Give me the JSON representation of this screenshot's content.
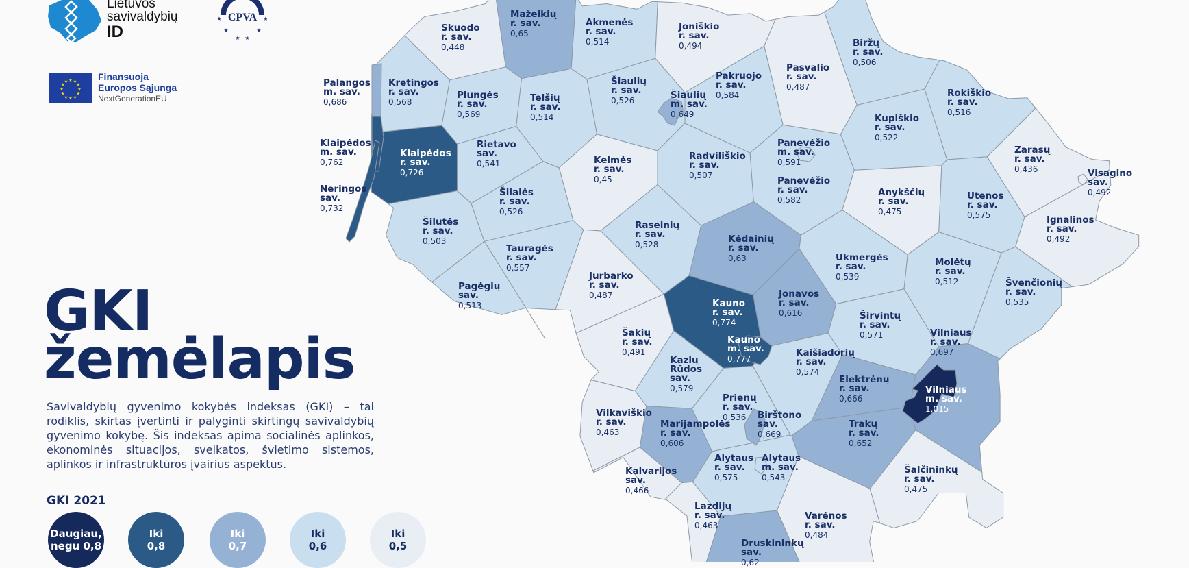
{
  "logos": {
    "id_logo": {
      "line1": "Lietuvos",
      "line2": "savivaldybių",
      "line3": "ID"
    },
    "cpva_logo": {
      "text": "CPVA"
    },
    "eu_logo": {
      "line1": "Finansuoja",
      "line2": "Europos Sąjunga",
      "line3": "NextGenerationEU"
    }
  },
  "title": {
    "line1": "GKI",
    "line2": "žemėlapis"
  },
  "description": "Savivaldybių gyvenimo kokybės indeksas (GKI) – tai rodiklis, skirtas įvertinti ir palyginti skirtingų savivaldybių gyvenimo kokybę. Šis indeksas apima socialinės aplinkos, ekonominės situacijos, sveikatos, švietimo sistemos, aplinkos ir infrastruk­tūros įvairius aspektus.",
  "legend": {
    "title": "GKI 2021",
    "items": [
      {
        "line1": "Daugiau,",
        "line2": "negu 0,8",
        "lower_bound": 0.8,
        "color": "#15295a",
        "text_color": "#ffffff"
      },
      {
        "line1": "Iki",
        "line2": "0,8",
        "lower_bound": 0.7,
        "color": "#2b5a87",
        "text_color": "#ffffff"
      },
      {
        "line1": "Iki",
        "line2": "0,7",
        "lower_bound": 0.6,
        "color": "#95b2d5",
        "text_color": "#ffffff"
      },
      {
        "line1": "Iki",
        "line2": "0,6",
        "lower_bound": 0.5,
        "color": "#c9deee",
        "text_color": "#152c62"
      },
      {
        "line1": "Iki",
        "line2": "0,5",
        "lower_bound": 0,
        "color": "#e8eef4",
        "text_color": "#152c62"
      }
    ]
  },
  "map": {
    "border_color": "#8e99a6",
    "municipalities": [
      {
        "name": "Palangos",
        "type": "m. sav.",
        "value": "0,686"
      },
      {
        "name": "Klaipėdos",
        "type": "m. sav.",
        "value": "0,762"
      },
      {
        "name": "Neringos",
        "type": "sav.",
        "value": "0,732"
      },
      {
        "name": "Skuodo",
        "type": "r. sav.",
        "value": "0,448"
      },
      {
        "name": "Mažeikių",
        "type": "r. sav.",
        "value": "0,65"
      },
      {
        "name": "Akmenės",
        "type": "r. sav.",
        "value": "0,514"
      },
      {
        "name": "Joniškio",
        "type": "r. sav.",
        "value": "0,494"
      },
      {
        "name": "Biržų",
        "type": "r. sav.",
        "value": "0,506"
      },
      {
        "name": "Pasvalio",
        "type": "r. sav.",
        "value": "0,487"
      },
      {
        "name": "Pakruojo",
        "type": "r. sav.",
        "value": "0,584"
      },
      {
        "name": "Šiaulių",
        "type": "r. sav.",
        "value": "0,526"
      },
      {
        "name": "Šiaulių",
        "type": "m. sav.",
        "value": "0,649"
      },
      {
        "name": "Kretingos",
        "type": "r. sav.",
        "value": "0,568"
      },
      {
        "name": "Plungės",
        "type": "r. sav.",
        "value": "0,569"
      },
      {
        "name": "Telšių",
        "type": "r. sav.",
        "value": "0,514"
      },
      {
        "name": "Rokiškio",
        "type": "r. sav.",
        "value": "0,516"
      },
      {
        "name": "Kupiškio",
        "type": "r. sav.",
        "value": "0,522"
      },
      {
        "name": "Klaipėdos",
        "type": "r. sav.",
        "value": "0,726"
      },
      {
        "name": "Rietavo",
        "type": "sav.",
        "value": "0,541"
      },
      {
        "name": "Kelmės",
        "type": "r. sav.",
        "value": "0,45"
      },
      {
        "name": "Radviliškio",
        "type": "r. sav.",
        "value": "0,507"
      },
      {
        "name": "Panevėžio",
        "type": "m. sav.",
        "value": "0,591"
      },
      {
        "name": "Panevėžio",
        "type": "r. sav.",
        "value": "0,582"
      },
      {
        "name": "Zarasų",
        "type": "r. sav.",
        "value": "0,436"
      },
      {
        "name": "Visagino",
        "type": "sav.",
        "value": "0,492"
      },
      {
        "name": "Anykščių",
        "type": "r. sav.",
        "value": "0,475"
      },
      {
        "name": "Utenos",
        "type": "r. sav.",
        "value": "0,575"
      },
      {
        "name": "Ignalinos",
        "type": "r. sav.",
        "value": "0,492"
      },
      {
        "name": "Šilalės",
        "type": "r. sav.",
        "value": "0,526"
      },
      {
        "name": "Šilutės",
        "type": "r. sav.",
        "value": "0,503"
      },
      {
        "name": "Raseinių",
        "type": "r. sav.",
        "value": "0,528"
      },
      {
        "name": "Kėdainių",
        "type": "r. sav.",
        "value": "0,63"
      },
      {
        "name": "Tauragės",
        "type": "r. sav.",
        "value": "0,557"
      },
      {
        "name": "Ukmergės",
        "type": "r. sav.",
        "value": "0,539"
      },
      {
        "name": "Molėtų",
        "type": "r. sav.",
        "value": "0,512"
      },
      {
        "name": "Jurbarko",
        "type": "r. sav.",
        "value": "0,487"
      },
      {
        "name": "Pagėgių",
        "type": "sav.",
        "value": "0,513"
      },
      {
        "name": "Švenčionių",
        "type": "r. sav.",
        "value": "0,535"
      },
      {
        "name": "Kauno",
        "type": "r. sav.",
        "value": "0,774"
      },
      {
        "name": "Jonavos",
        "type": "r. sav.",
        "value": "0,616"
      },
      {
        "name": "Širvintų",
        "type": "r. sav.",
        "value": "0,571"
      },
      {
        "name": "Šakių",
        "type": "r. sav.",
        "value": "0,491"
      },
      {
        "name": "Vilniaus",
        "type": "r. sav.",
        "value": "0,697"
      },
      {
        "name": "Kauno",
        "type": "m. sav.",
        "value": "0,777"
      },
      {
        "name": "Kaišiadorių",
        "type": "r. sav.",
        "value": "0,574"
      },
      {
        "name": "Kazlų Rūdos",
        "type": "sav.",
        "value": "0,579"
      },
      {
        "name": "Elektrėnų",
        "type": "r. sav.",
        "value": "0,666"
      },
      {
        "name": "Vilniaus",
        "type": "m. sav.",
        "value": "1,015"
      },
      {
        "name": "Prienų",
        "type": "r. sav.",
        "value": "0,536"
      },
      {
        "name": "Vilkaviškio",
        "type": "r. sav.",
        "value": "0,463"
      },
      {
        "name": "Birštono",
        "type": "sav.",
        "value": "0,669"
      },
      {
        "name": "Marijampolės",
        "type": "r. sav.",
        "value": "0,606"
      },
      {
        "name": "Trakų",
        "type": "r. sav.",
        "value": "0,652"
      },
      {
        "name": "Alytaus",
        "type": "r. sav.",
        "value": "0,575"
      },
      {
        "name": "Alytaus",
        "type": "m. sav.",
        "value": "0,543"
      },
      {
        "name": "Kalvarijos",
        "type": "sav.",
        "value": "0,466"
      },
      {
        "name": "Šalčininkų",
        "type": "r. sav.",
        "value": "0,475"
      },
      {
        "name": "Lazdijų",
        "type": "r. sav.",
        "value": "0,463"
      },
      {
        "name": "Varėnos",
        "type": "r. sav.",
        "value": "0,484"
      },
      {
        "name": "Druskininkų",
        "type": "sav.",
        "value": "0,62"
      }
    ]
  }
}
